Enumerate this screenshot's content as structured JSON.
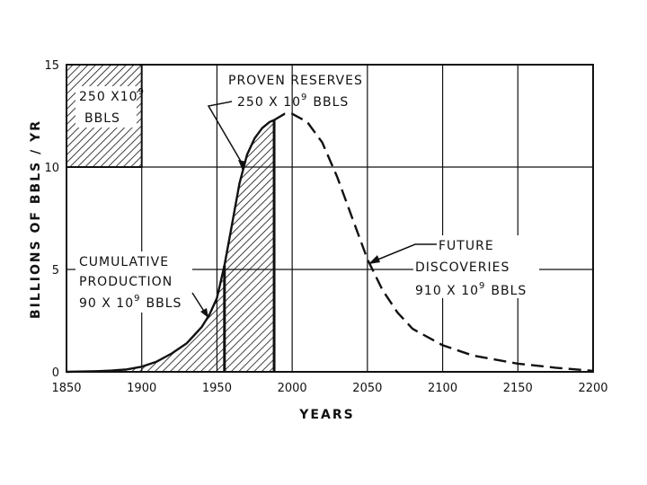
{
  "chart_data": {
    "type": "area",
    "xlabel": "YEARS",
    "ylabel": "BILLIONS OF BBLS / YR",
    "xlim": [
      1850,
      2200
    ],
    "ylim": [
      0,
      15
    ],
    "x_ticks": [
      "1850",
      "1900",
      "1950",
      "2000",
      "2050",
      "2100",
      "2150",
      "2200"
    ],
    "y_ticks": [
      "0",
      "5",
      "10",
      "15"
    ],
    "grid": true,
    "series": [
      {
        "style": "solid",
        "x": [
          1850,
          1870,
          1880,
          1890,
          1900,
          1910,
          1920,
          1930,
          1935,
          1940,
          1945,
          1950,
          1955,
          1960,
          1965,
          1970,
          1975,
          1980,
          1985,
          1988
        ],
        "y": [
          0,
          0.03,
          0.06,
          0.12,
          0.25,
          0.5,
          0.9,
          1.4,
          1.8,
          2.2,
          2.8,
          3.6,
          5.2,
          7.2,
          9.2,
          10.6,
          11.4,
          11.9,
          12.2,
          12.3
        ]
      },
      {
        "style": "dashed",
        "x": [
          1988,
          1995,
          2000,
          2010,
          2020,
          2030,
          2040,
          2050,
          2060,
          2070,
          2080,
          2100,
          2120,
          2150,
          2175,
          2200
        ],
        "y": [
          12.3,
          12.6,
          12.6,
          12.2,
          11.2,
          9.5,
          7.5,
          5.5,
          4.0,
          2.9,
          2.1,
          1.3,
          0.8,
          0.4,
          0.2,
          0.05
        ]
      }
    ],
    "shaded_regions": [
      {
        "name": "cumulative_production",
        "x_from": 1850,
        "x_to": 1955
      },
      {
        "name": "proven_reserves",
        "x_from": 1955,
        "x_to": 1988
      }
    ],
    "legend_box": {
      "x_from": 1850,
      "x_to": 1900,
      "y_from": 10,
      "y_to": 15,
      "label_line1": "250 X10",
      "label_sup": "9",
      "label_line2": "BBLS"
    },
    "annotations": {
      "proven_reserves": {
        "line1": "PROVEN RESERVES",
        "line2": "250 X 10",
        "sup": "9",
        "line2_suffix": "BBLS"
      },
      "cumulative_production": {
        "line1": "CUMULATIVE",
        "line2": "PRODUCTION",
        "line3": "90 X 10",
        "sup": "9",
        "line3_suffix": "BBLS"
      },
      "future_discoveries": {
        "line1": "FUTURE",
        "line2": "DISCOVERIES",
        "line3": "910 X 10",
        "sup": "9",
        "line3_suffix": "BBLS"
      }
    }
  }
}
